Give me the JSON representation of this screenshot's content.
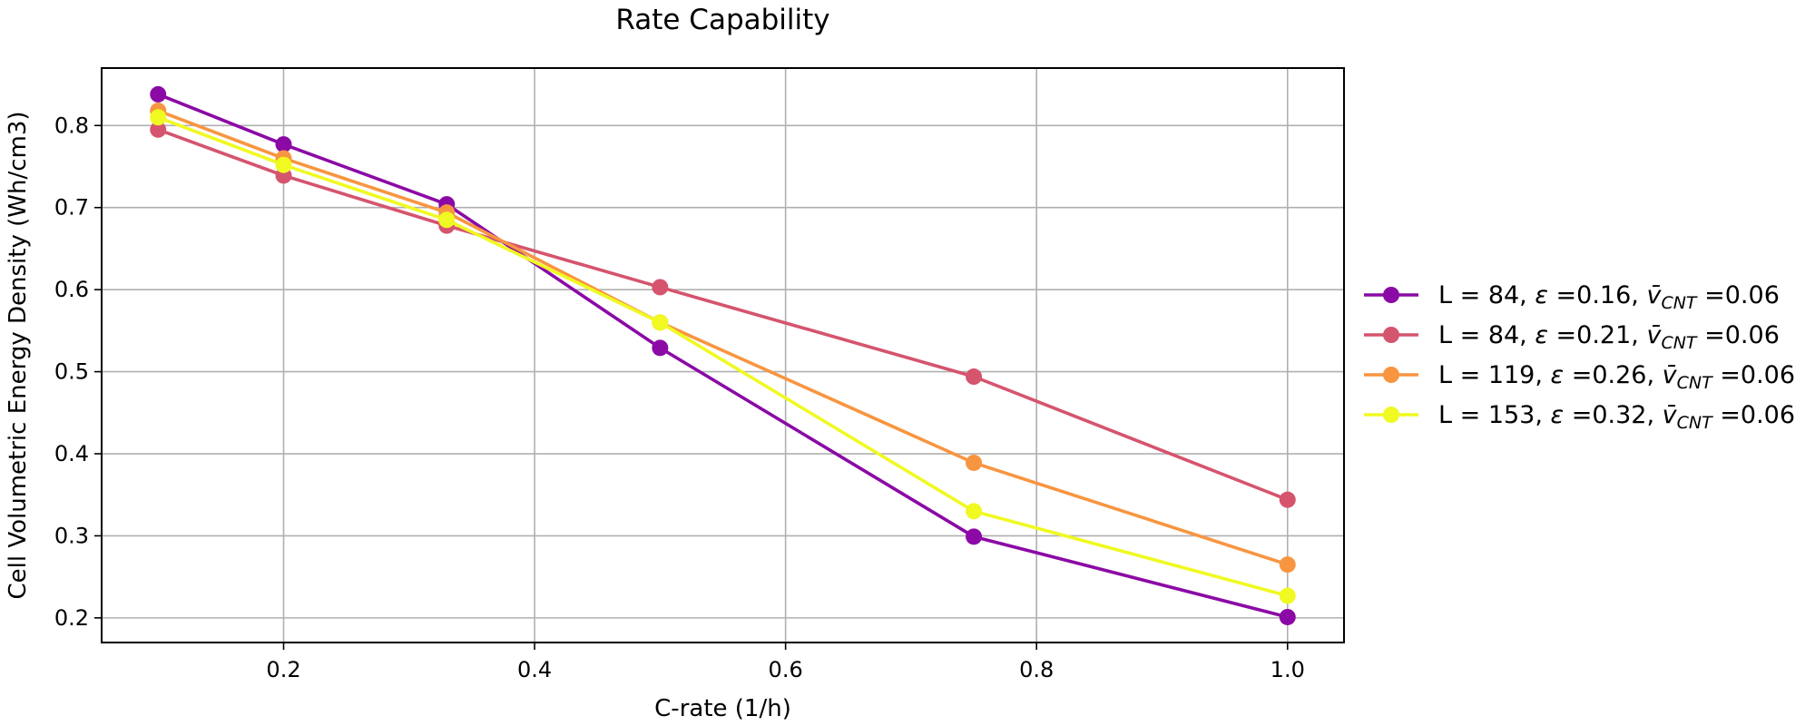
{
  "chart_data": {
    "type": "line",
    "title": "Rate Capability",
    "xlabel": "C-rate (1/h)",
    "ylabel": "Cell Volumetric Energy Density (Wh/cm3)",
    "xlim": [
      0.055,
      1.045
    ],
    "ylim": [
      0.17,
      0.87
    ],
    "xticks": [
      0.2,
      0.4,
      0.6,
      0.8,
      1.0
    ],
    "xtick_labels": [
      "0.2",
      "0.4",
      "0.6",
      "0.8",
      "1.0"
    ],
    "yticks": [
      0.2,
      0.3,
      0.4,
      0.5,
      0.6,
      0.7,
      0.8
    ],
    "ytick_labels": [
      "0.2",
      "0.3",
      "0.4",
      "0.5",
      "0.6",
      "0.7",
      "0.8"
    ],
    "grid": true,
    "legend_position": "outside-right",
    "x": [
      0.1,
      0.2,
      0.33,
      0.5,
      0.75,
      1.0
    ],
    "series": [
      {
        "name": "L = 84, ε =0.16, v̄CNT =0.06",
        "legend": {
          "prefix": "L = 84, ",
          "eps": "ε",
          "eps_val": " =0.16, ",
          "v": "v̄",
          "sub": "CNT",
          "v_val": " =0.06"
        },
        "color": "#8b0aa5",
        "values": [
          0.838,
          0.777,
          0.704,
          0.529,
          0.299,
          0.201
        ]
      },
      {
        "name": "L = 84, ε =0.21, v̄CNT =0.06",
        "legend": {
          "prefix": "L = 84, ",
          "eps": "ε",
          "eps_val": " =0.21, ",
          "v": "v̄",
          "sub": "CNT",
          "v_val": " =0.06"
        },
        "color": "#d5546e",
        "values": [
          0.795,
          0.739,
          0.678,
          0.603,
          0.494,
          0.344
        ]
      },
      {
        "name": "L = 119, ε =0.26, v̄CNT =0.06",
        "legend": {
          "prefix": "L = 119, ",
          "eps": "ε",
          "eps_val": " =0.26, ",
          "v": "v̄",
          "sub": "CNT",
          "v_val": " =0.06"
        },
        "color": "#f89540",
        "values": [
          0.818,
          0.76,
          0.694,
          0.56,
          0.389,
          0.265
        ]
      },
      {
        "name": "L = 153, ε =0.32, v̄CNT =0.06",
        "legend": {
          "prefix": "L = 153, ",
          "eps": "ε",
          "eps_val": " =0.32, ",
          "v": "v̄",
          "sub": "CNT",
          "v_val": " =0.06"
        },
        "color": "#f0f921",
        "values": [
          0.81,
          0.752,
          0.685,
          0.56,
          0.33,
          0.227
        ]
      }
    ]
  }
}
